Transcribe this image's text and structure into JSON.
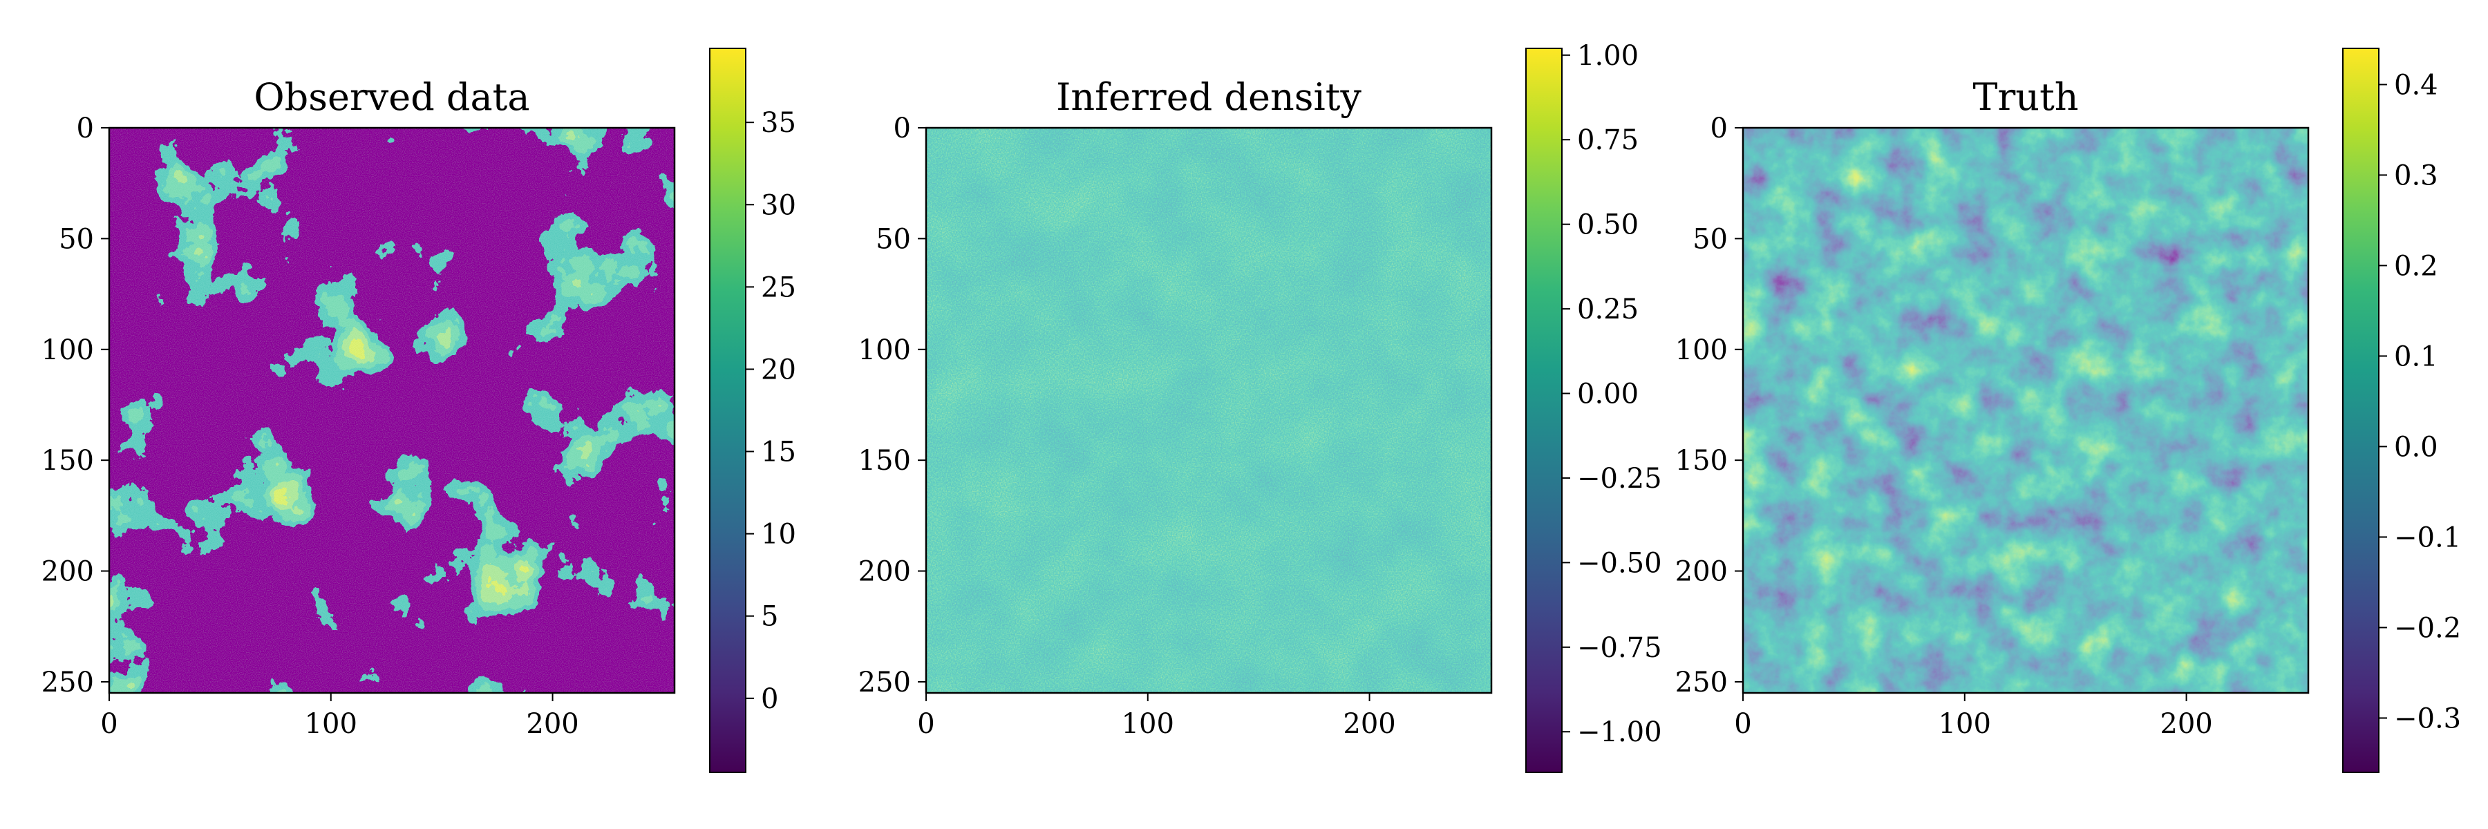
{
  "colors": {
    "viridis": [
      "#440154",
      "#482878",
      "#3e4989",
      "#31688e",
      "#26828e",
      "#1f9e89",
      "#35b779",
      "#6ece58",
      "#b5de2b",
      "#fde725"
    ],
    "axes": "#000000",
    "background": "#ffffff"
  },
  "chart_data": [
    {
      "type": "heatmap",
      "title": "Observed data",
      "xlabel": "",
      "ylabel": "",
      "grid_size": [
        256,
        256
      ],
      "x_ticks": [
        "0",
        "100",
        "200"
      ],
      "y_ticks": [
        "0",
        "50",
        "100",
        "150",
        "200",
        "250"
      ],
      "x_tick_values": [
        0,
        100,
        200
      ],
      "y_tick_values": [
        0,
        50,
        100,
        150,
        200,
        250
      ],
      "xlim": [
        0,
        255
      ],
      "ylim": [
        255,
        0
      ],
      "colorbar": {
        "range": [
          -4.5,
          39.5
        ],
        "tick_values": [
          0,
          5,
          10,
          15,
          20,
          25,
          30,
          35
        ],
        "tick_labels": [
          "0",
          "5",
          "10",
          "15",
          "20",
          "25",
          "30",
          "35"
        ]
      },
      "colormap": "viridis",
      "grid": false
    },
    {
      "type": "heatmap",
      "title": "Inferred density",
      "xlabel": "",
      "ylabel": "",
      "grid_size": [
        256,
        256
      ],
      "x_ticks": [
        "0",
        "100",
        "200"
      ],
      "y_ticks": [
        "0",
        "50",
        "100",
        "150",
        "200",
        "250"
      ],
      "x_tick_values": [
        0,
        100,
        200
      ],
      "y_tick_values": [
        0,
        50,
        100,
        150,
        200,
        250
      ],
      "xlim": [
        0,
        255
      ],
      "ylim": [
        255,
        0
      ],
      "colorbar": {
        "range": [
          -1.12,
          1.02
        ],
        "tick_values": [
          1.0,
          0.75,
          0.5,
          0.25,
          0.0,
          -0.25,
          -0.5,
          -0.75,
          -1.0
        ],
        "tick_labels": [
          "1.00",
          "0.75",
          "0.50",
          "0.25",
          "0.00",
          "−0.25",
          "−0.50",
          "−0.75",
          "−1.00"
        ]
      },
      "colormap": "viridis",
      "grid": false
    },
    {
      "type": "heatmap",
      "title": "Truth",
      "xlabel": "",
      "ylabel": "",
      "grid_size": [
        256,
        256
      ],
      "x_ticks": [
        "0",
        "100",
        "200"
      ],
      "y_ticks": [
        "0",
        "50",
        "100",
        "150",
        "200",
        "250"
      ],
      "x_tick_values": [
        0,
        100,
        200
      ],
      "y_tick_values": [
        0,
        50,
        100,
        150,
        200,
        250
      ],
      "xlim": [
        0,
        255
      ],
      "ylim": [
        255,
        0
      ],
      "colorbar": {
        "range": [
          -0.36,
          0.44
        ],
        "tick_values": [
          0.4,
          0.3,
          0.2,
          0.1,
          0.0,
          -0.1,
          -0.2,
          -0.3
        ],
        "tick_labels": [
          "0.4",
          "0.3",
          "0.2",
          "0.1",
          "0.0",
          "−0.1",
          "−0.2",
          "−0.3"
        ]
      },
      "colormap": "viridis",
      "grid": false
    }
  ]
}
